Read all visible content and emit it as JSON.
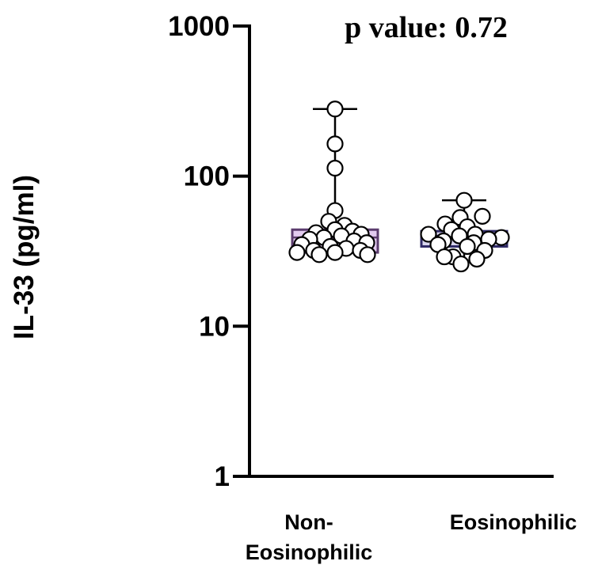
{
  "chart_data": {
    "type": "box",
    "title": "",
    "annotation": "p value: 0.72",
    "xlabel": "",
    "ylabel": "IL-33 (pg/ml)",
    "yscale": "log",
    "ylim": [
      1,
      1000
    ],
    "yticks": [
      1,
      10,
      100,
      1000
    ],
    "ytick_labels": [
      "1",
      "10",
      "100",
      "1000"
    ],
    "grid": false,
    "legend": null,
    "categories": [
      "Non-Eosinophilic",
      "Eosinophilic"
    ],
    "category_label_lines": [
      [
        "Non-",
        "Eosinophilic"
      ],
      [
        "Eosinophilic"
      ]
    ],
    "series": [
      {
        "name": "Non-Eosinophilic",
        "box_fill": "#e2cbef",
        "box_edge": "#5b3c6e",
        "min": 30,
        "q1": 31,
        "median": 39,
        "q3": 44,
        "max": 280,
        "points": [
          280,
          164,
          113,
          59,
          50,
          47,
          44,
          43,
          42,
          41,
          40,
          39,
          38,
          37,
          36,
          35,
          34,
          33,
          32,
          32,
          31,
          31,
          30,
          30
        ]
      },
      {
        "name": "Eosinophilic",
        "box_fill": "#d9d6ee",
        "box_edge": "#2f2a66",
        "min": 26,
        "q1": 34,
        "median": 40,
        "q3": 43,
        "max": 69,
        "points": [
          69,
          54,
          53,
          48,
          46,
          44,
          41,
          41,
          40,
          39,
          38,
          37,
          36,
          35,
          34,
          32,
          29,
          29,
          28,
          26
        ]
      }
    ]
  }
}
